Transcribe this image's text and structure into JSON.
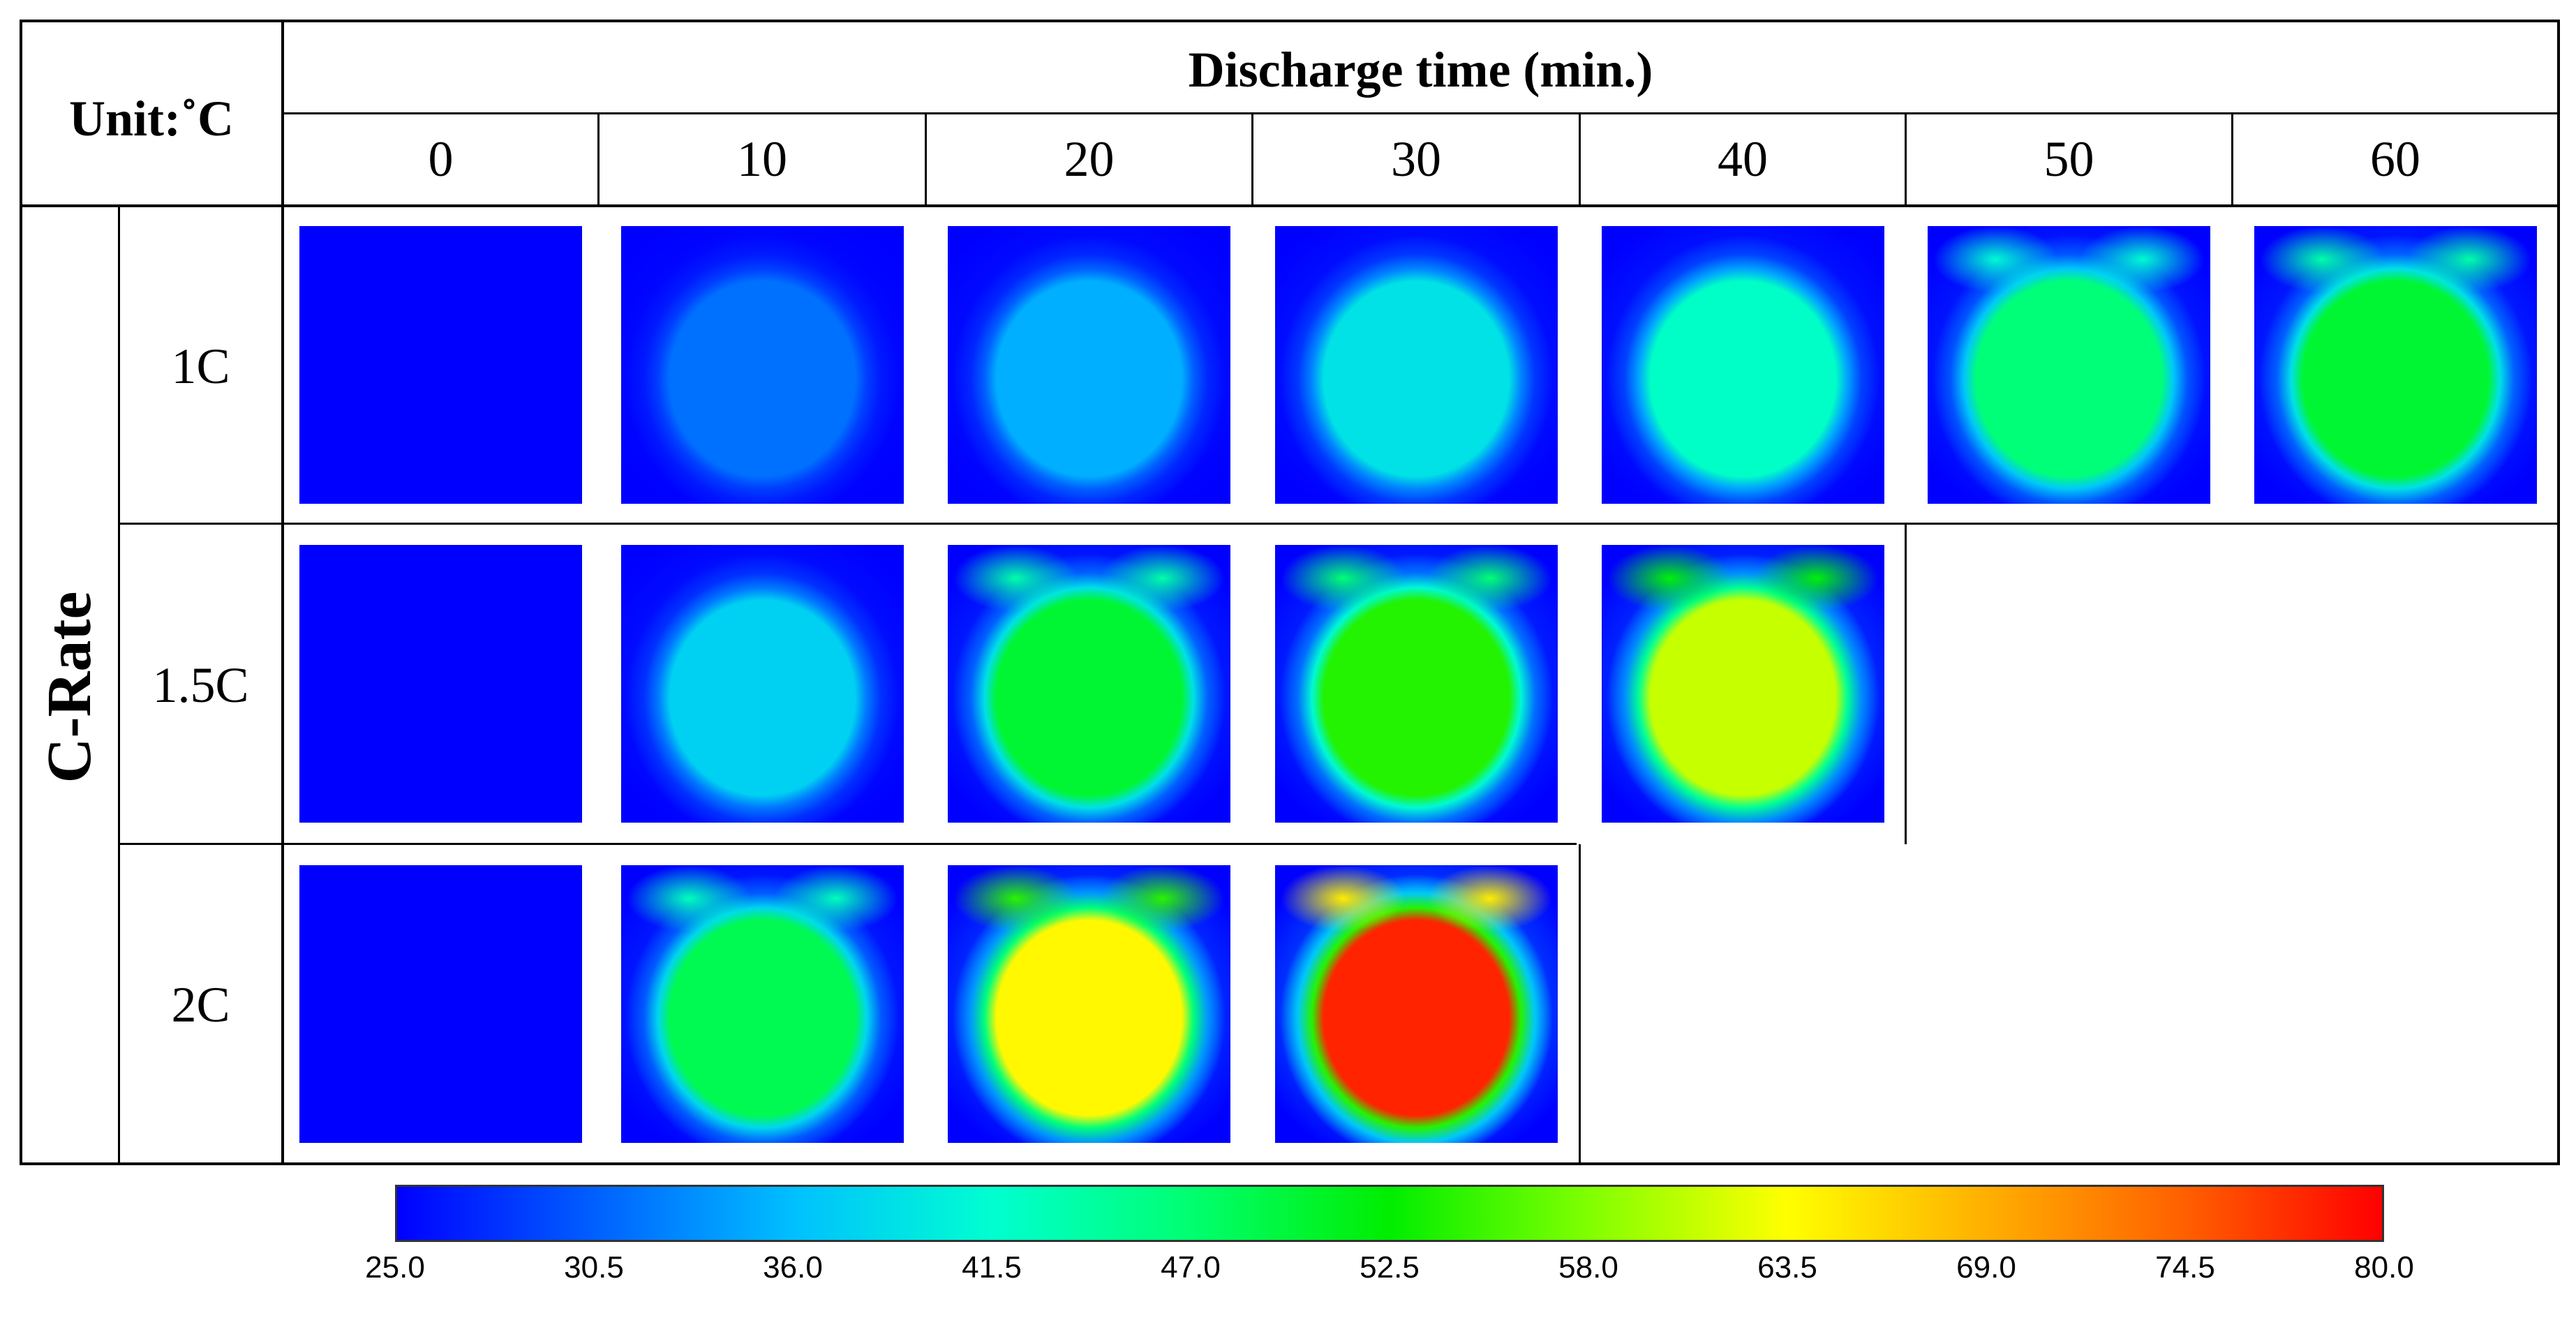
{
  "corner_label": "Unit:˚C",
  "x_header": "Discharge time (min.)",
  "y_header": "C-Rate",
  "times": [
    "0",
    "10",
    "20",
    "30",
    "40",
    "50",
    "60"
  ],
  "rows": [
    {
      "label": "1C",
      "tiles": [
        25.0,
        31.5,
        35.0,
        39.0,
        42.0,
        46.5,
        50.0
      ]
    },
    {
      "label": "1.5C",
      "tiles": [
        25.0,
        37.5,
        50.0,
        54.0,
        61.0
      ]
    },
    {
      "label": "2C",
      "tiles": [
        25.0,
        48.5,
        64.0,
        78.0
      ]
    }
  ],
  "colorbar": {
    "min": 25.0,
    "max": 80.0,
    "ticks": [
      "25.0",
      "30.5",
      "36.0",
      "41.5",
      "47.0",
      "52.5",
      "58.0",
      "63.5",
      "69.0",
      "74.5",
      "80.0"
    ],
    "colors": [
      "#0000ff",
      "#0060ff",
      "#00c0ff",
      "#00ffd0",
      "#00ff70",
      "#00ee00",
      "#80ff00",
      "#ffff00",
      "#ffb000",
      "#ff6000",
      "#ff0000"
    ]
  }
}
